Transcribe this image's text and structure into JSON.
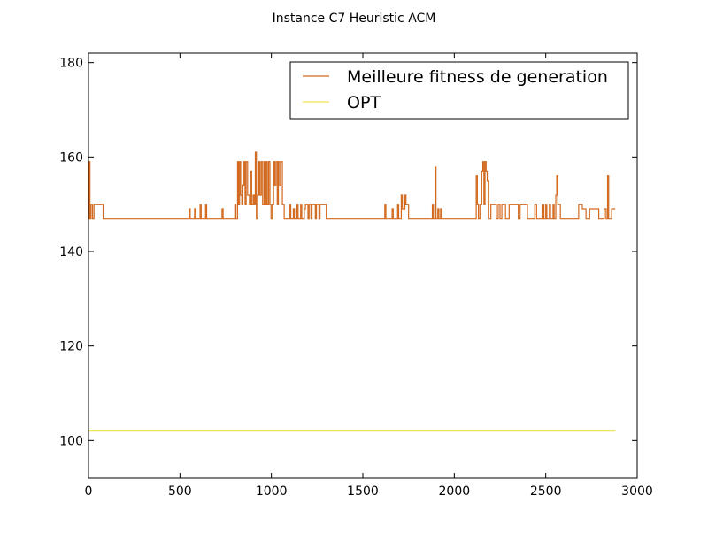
{
  "chart_data": {
    "type": "line",
    "title": "Instance C7 Heuristic ACM",
    "xlabel": "",
    "ylabel": "",
    "xlim": [
      0,
      3000
    ],
    "ylim": [
      92,
      182
    ],
    "xticks": [
      0,
      500,
      1000,
      1500,
      2000,
      2500,
      3000
    ],
    "yticks": [
      100,
      120,
      140,
      160,
      180
    ],
    "grid": false,
    "legend_position": "top-right",
    "series": [
      {
        "name": "Meilleure fitness de generation",
        "color": "#d2691e",
        "step": true,
        "points": [
          [
            0,
            147
          ],
          [
            3,
            159
          ],
          [
            8,
            147
          ],
          [
            14,
            150
          ],
          [
            22,
            147
          ],
          [
            30,
            150
          ],
          [
            80,
            147
          ],
          [
            550,
            149
          ],
          [
            556,
            147
          ],
          [
            580,
            149
          ],
          [
            586,
            147
          ],
          [
            610,
            150
          ],
          [
            616,
            147
          ],
          [
            640,
            150
          ],
          [
            646,
            147
          ],
          [
            730,
            149
          ],
          [
            736,
            147
          ],
          [
            800,
            150
          ],
          [
            806,
            147
          ],
          [
            815,
            159
          ],
          [
            820,
            150
          ],
          [
            826,
            159
          ],
          [
            832,
            152
          ],
          [
            838,
            150
          ],
          [
            844,
            154
          ],
          [
            850,
            159
          ],
          [
            856,
            150
          ],
          [
            862,
            159
          ],
          [
            870,
            152
          ],
          [
            880,
            150
          ],
          [
            886,
            157
          ],
          [
            892,
            150
          ],
          [
            900,
            152
          ],
          [
            906,
            150
          ],
          [
            912,
            161
          ],
          [
            918,
            147
          ],
          [
            925,
            152
          ],
          [
            932,
            159
          ],
          [
            938,
            152
          ],
          [
            945,
            159
          ],
          [
            952,
            150
          ],
          [
            960,
            159
          ],
          [
            966,
            150
          ],
          [
            972,
            159
          ],
          [
            978,
            150
          ],
          [
            985,
            159
          ],
          [
            992,
            150
          ],
          [
            998,
            147
          ],
          [
            1005,
            150
          ],
          [
            1012,
            159
          ],
          [
            1018,
            154
          ],
          [
            1025,
            159
          ],
          [
            1032,
            150
          ],
          [
            1038,
            159
          ],
          [
            1045,
            154
          ],
          [
            1052,
            159
          ],
          [
            1060,
            150
          ],
          [
            1070,
            147
          ],
          [
            1100,
            150
          ],
          [
            1106,
            147
          ],
          [
            1120,
            149
          ],
          [
            1126,
            147
          ],
          [
            1140,
            150
          ],
          [
            1146,
            147
          ],
          [
            1160,
            150
          ],
          [
            1166,
            147
          ],
          [
            1180,
            149
          ],
          [
            1186,
            150
          ],
          [
            1200,
            147
          ],
          [
            1206,
            150
          ],
          [
            1216,
            147
          ],
          [
            1222,
            150
          ],
          [
            1240,
            147
          ],
          [
            1246,
            150
          ],
          [
            1260,
            147
          ],
          [
            1266,
            150
          ],
          [
            1300,
            147
          ],
          [
            1620,
            150
          ],
          [
            1626,
            147
          ],
          [
            1660,
            149
          ],
          [
            1666,
            147
          ],
          [
            1690,
            150
          ],
          [
            1696,
            147
          ],
          [
            1710,
            152
          ],
          [
            1716,
            149
          ],
          [
            1730,
            152
          ],
          [
            1736,
            150
          ],
          [
            1750,
            147
          ],
          [
            1880,
            150
          ],
          [
            1886,
            147
          ],
          [
            1895,
            158
          ],
          [
            1900,
            147
          ],
          [
            1910,
            149
          ],
          [
            1916,
            147
          ],
          [
            1925,
            149
          ],
          [
            1931,
            147
          ],
          [
            2120,
            156
          ],
          [
            2126,
            150
          ],
          [
            2132,
            147
          ],
          [
            2140,
            150
          ],
          [
            2150,
            157
          ],
          [
            2156,
            159
          ],
          [
            2162,
            150
          ],
          [
            2168,
            159
          ],
          [
            2174,
            157
          ],
          [
            2180,
            155
          ],
          [
            2186,
            147
          ],
          [
            2200,
            150
          ],
          [
            2230,
            147
          ],
          [
            2240,
            150
          ],
          [
            2250,
            147
          ],
          [
            2260,
            150
          ],
          [
            2280,
            147
          ],
          [
            2300,
            150
          ],
          [
            2350,
            147
          ],
          [
            2360,
            150
          ],
          [
            2400,
            147
          ],
          [
            2440,
            150
          ],
          [
            2450,
            147
          ],
          [
            2480,
            150
          ],
          [
            2490,
            147
          ],
          [
            2500,
            150
          ],
          [
            2506,
            147
          ],
          [
            2520,
            150
          ],
          [
            2526,
            147
          ],
          [
            2540,
            150
          ],
          [
            2546,
            147
          ],
          [
            2555,
            152
          ],
          [
            2560,
            156
          ],
          [
            2566,
            150
          ],
          [
            2580,
            147
          ],
          [
            2680,
            150
          ],
          [
            2700,
            149
          ],
          [
            2720,
            147
          ],
          [
            2740,
            149
          ],
          [
            2790,
            147
          ],
          [
            2820,
            149
          ],
          [
            2830,
            147
          ],
          [
            2838,
            156
          ],
          [
            2844,
            147
          ],
          [
            2860,
            149
          ],
          [
            2880,
            149
          ]
        ]
      },
      {
        "name": "OPT",
        "color": "#f3e14a",
        "step": false,
        "points": [
          [
            0,
            102
          ],
          [
            2880,
            102
          ]
        ]
      }
    ]
  }
}
